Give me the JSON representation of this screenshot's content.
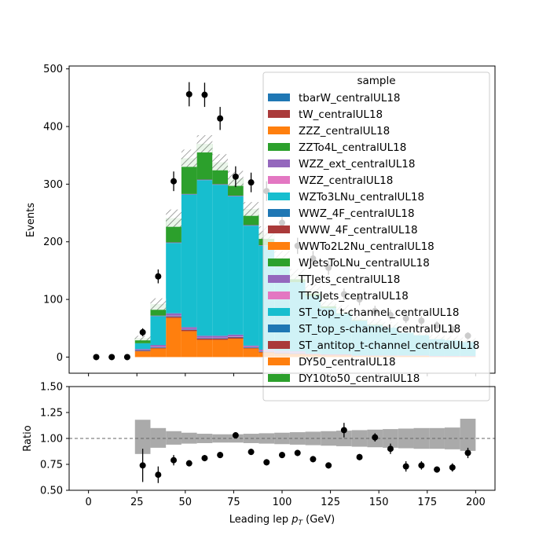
{
  "chart_data": [
    {
      "type": "bar",
      "subtype": "stacked-histogram",
      "ylabel": "Events",
      "xlim": [
        -10,
        210
      ],
      "ylim": [
        -28,
        505
      ],
      "yticks": [
        0,
        100,
        200,
        300,
        400,
        500
      ],
      "bin_edges": [
        24,
        32,
        40,
        48,
        56,
        64,
        72,
        80,
        88,
        96,
        104,
        112,
        120,
        128,
        136,
        144,
        152,
        160,
        168,
        176,
        184,
        192,
        200
      ],
      "stacked_components": [
        {
          "sample": "DY50_centralUL18",
          "color": "#ff7f0e",
          "values": [
            10,
            15,
            68,
            45,
            30,
            30,
            32,
            15,
            8,
            6,
            5,
            4,
            3,
            3,
            2,
            2,
            2,
            2,
            2,
            1,
            1,
            1
          ]
        },
        {
          "sample": "ST_antitop_t-channel_centralUL18",
          "color": "#aa3a3a",
          "values": [
            1,
            1,
            2,
            2,
            2,
            2,
            2,
            1,
            1,
            1,
            1,
            1,
            1,
            1,
            0,
            0,
            0,
            0,
            0,
            0,
            0,
            0
          ]
        },
        {
          "sample": "ST_top_s-channel_centralUL18",
          "color": "#1f77b4",
          "values": [
            1,
            1,
            1,
            1,
            1,
            1,
            1,
            1,
            1,
            1,
            1,
            0,
            0,
            0,
            0,
            0,
            0,
            0,
            0,
            0,
            0,
            0
          ]
        },
        {
          "sample": "TTGJets_centralUL18",
          "color": "#e377c2",
          "values": [
            0,
            1,
            1,
            1,
            1,
            1,
            1,
            1,
            1,
            1,
            1,
            0,
            0,
            0,
            0,
            0,
            0,
            0,
            0,
            0,
            0,
            0
          ]
        },
        {
          "sample": "TTJets_centralUL18",
          "color": "#9467bd",
          "values": [
            2,
            3,
            4,
            3,
            3,
            3,
            3,
            2,
            2,
            2,
            2,
            1,
            1,
            1,
            1,
            1,
            1,
            1,
            1,
            1,
            1,
            1
          ]
        },
        {
          "sample": "WZTo3LNu_centralUL18",
          "color": "#17becf",
          "values": [
            10,
            50,
            122,
            230,
            270,
            262,
            240,
            208,
            180,
            145,
            120,
            100,
            80,
            70,
            60,
            52,
            48,
            40,
            35,
            30,
            28,
            25
          ]
        },
        {
          "sample": "WZZ_ext_centralUL18",
          "color": "#9467bd",
          "values": [
            0,
            1,
            1,
            1,
            1,
            1,
            1,
            1,
            1,
            1,
            0,
            0,
            0,
            0,
            0,
            0,
            0,
            0,
            0,
            0,
            0,
            0
          ]
        },
        {
          "sample": "ZZTo4L_centralUL18",
          "color": "#2ca02c",
          "values": [
            9,
            20,
            42,
            62,
            62,
            38,
            30,
            28,
            22,
            17,
            14,
            12,
            10,
            8,
            7,
            6,
            5,
            4,
            4,
            3,
            3,
            3
          ]
        }
      ],
      "mc_uncertainty_band": [
        4,
        10,
        15,
        15,
        15,
        14,
        13,
        12,
        11,
        10,
        9,
        8,
        7,
        7,
        6,
        5,
        5,
        5,
        4,
        4,
        4,
        4
      ],
      "data_points": {
        "name": "data",
        "x": [
          4,
          12,
          20,
          28,
          36,
          44,
          52,
          60,
          68,
          76,
          84,
          92,
          100,
          108,
          116,
          124,
          132,
          140,
          148,
          156,
          164,
          172,
          180,
          188,
          196
        ],
        "y": [
          0,
          0,
          0,
          43,
          140,
          305,
          456,
          455,
          414,
          313,
          303,
          288,
          233,
          193,
          171,
          155,
          109,
          100,
          80,
          73,
          67,
          63,
          55,
          48,
          37
        ],
        "yerr": [
          0,
          0,
          0,
          7,
          12,
          17,
          21,
          21,
          20,
          18,
          17,
          17,
          15,
          14,
          13,
          12,
          10,
          10,
          9,
          9,
          8,
          8,
          7,
          7,
          6
        ]
      },
      "legend": {
        "title": "sample",
        "placement": "upper right",
        "entries": [
          {
            "label": "tbarW_centralUL18",
            "color": "#1f77b4"
          },
          {
            "label": "tW_centralUL18",
            "color": "#aa3a3a"
          },
          {
            "label": "ZZZ_centralUL18",
            "color": "#ff7f0e"
          },
          {
            "label": "ZZTo4L_centralUL18",
            "color": "#2ca02c"
          },
          {
            "label": "WZZ_ext_centralUL18",
            "color": "#9467bd"
          },
          {
            "label": "WZZ_centralUL18",
            "color": "#e377c2"
          },
          {
            "label": "WZTo3LNu_centralUL18",
            "color": "#17becf"
          },
          {
            "label": "WWZ_4F_centralUL18",
            "color": "#1f77b4"
          },
          {
            "label": "WWW_4F_centralUL18",
            "color": "#aa3a3a"
          },
          {
            "label": "WWTo2L2Nu_centralUL18",
            "color": "#ff7f0e"
          },
          {
            "label": "WJetsToLNu_centralUL18",
            "color": "#2ca02c"
          },
          {
            "label": "TTJets_centralUL18",
            "color": "#9467bd"
          },
          {
            "label": "TTGJets_centralUL18",
            "color": "#e377c2"
          },
          {
            "label": "ST_top_t-channel_centralUL18",
            "color": "#17becf"
          },
          {
            "label": "ST_top_s-channel_centralUL18",
            "color": "#1f77b4"
          },
          {
            "label": "ST_antitop_t-channel_centralUL18",
            "color": "#aa3a3a"
          },
          {
            "label": "DY50_centralUL18",
            "color": "#ff7f0e"
          },
          {
            "label": "DY10to50_centralUL18",
            "color": "#2ca02c"
          }
        ]
      }
    },
    {
      "type": "scatter",
      "subtype": "ratio",
      "xlabel": "Leading lep p_T (GeV)",
      "xlabel_main": "Leading lep ",
      "xlabel_sym": "p",
      "xlabel_sub": "T",
      "xlabel_unit": " (GeV)",
      "ylabel": "Ratio",
      "xlim": [
        -10,
        210
      ],
      "ylim": [
        0.5,
        1.5
      ],
      "xticks": [
        0,
        25,
        50,
        75,
        100,
        125,
        150,
        175,
        200
      ],
      "yticks": [
        0.5,
        0.75,
        1.0,
        1.25,
        1.5
      ],
      "ytick_labels": [
        "0.50",
        "0.75",
        "1.00",
        "1.25",
        "1.50"
      ],
      "reference_line": 1.0,
      "uncertainty_band": {
        "bin_edges": [
          24,
          32,
          40,
          48,
          56,
          64,
          72,
          80,
          88,
          96,
          104,
          112,
          120,
          128,
          136,
          144,
          152,
          160,
          168,
          176,
          184,
          192,
          200
        ],
        "low": [
          0.85,
          0.91,
          0.94,
          0.95,
          0.955,
          0.96,
          0.96,
          0.955,
          0.95,
          0.945,
          0.94,
          0.935,
          0.93,
          0.925,
          0.92,
          0.915,
          0.91,
          0.905,
          0.9,
          0.9,
          0.895,
          0.88
        ],
        "high": [
          1.18,
          1.1,
          1.07,
          1.055,
          1.045,
          1.04,
          1.04,
          1.045,
          1.05,
          1.055,
          1.06,
          1.065,
          1.07,
          1.075,
          1.08,
          1.085,
          1.09,
          1.095,
          1.1,
          1.1,
          1.105,
          1.19
        ]
      },
      "points": {
        "x": [
          28,
          36,
          44,
          52,
          60,
          68,
          76,
          84,
          92,
          100,
          108,
          116,
          124,
          132,
          140,
          148,
          156,
          164,
          172,
          180,
          188,
          196
        ],
        "y": [
          0.74,
          0.65,
          0.79,
          0.76,
          0.81,
          0.84,
          1.03,
          0.87,
          0.77,
          0.84,
          0.86,
          0.8,
          0.74,
          1.08,
          0.82,
          1.01,
          0.9,
          0.73,
          0.74,
          0.7,
          0.72,
          0.86
        ],
        "yerr": [
          0.16,
          0.08,
          0.05,
          0.03,
          0.03,
          0.03,
          0.03,
          0.03,
          0.03,
          0.03,
          0.03,
          0.03,
          0.03,
          0.07,
          0.03,
          0.04,
          0.05,
          0.05,
          0.04,
          0.03,
          0.04,
          0.05
        ]
      }
    }
  ]
}
